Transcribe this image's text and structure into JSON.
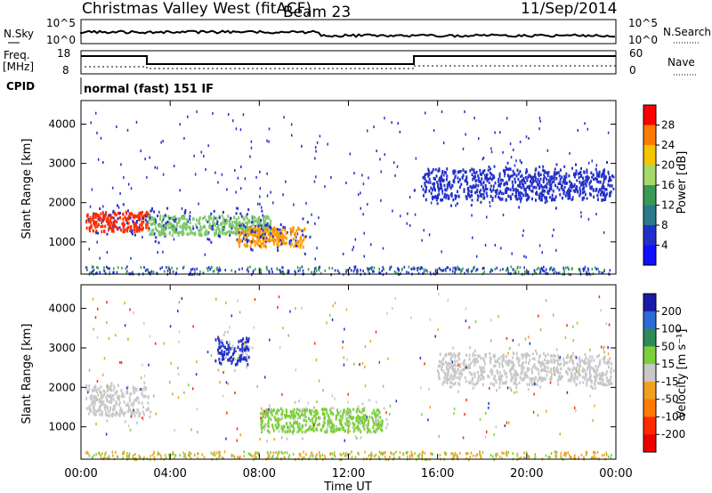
{
  "header": {
    "station": "Christmas Valley West (fitACF)",
    "beam": "Beam 23",
    "date": "11/Sep/2014"
  },
  "top_panels": {
    "nsky_label": "N.Sky",
    "nsky_ticks": [
      "10^5",
      "10^0"
    ],
    "nsearch_label": "N.Search",
    "nsearch_ticks": [
      "10^5",
      "10^0"
    ],
    "freq_label": "Freq.",
    "freq_unit": "[MHz]",
    "freq_ticks": [
      "18",
      "8"
    ],
    "nave_label": "Nave",
    "nave_ticks": [
      "60",
      "0"
    ],
    "cpid_label": "CPID",
    "cpid_value": "normal (fast) 151 IF"
  },
  "chart_data": [
    {
      "type": "heatmap",
      "name": "power",
      "ylabel": "Slant Range [km]",
      "xlabel": "",
      "xlim": [
        0,
        24
      ],
      "ylim": [
        180,
        4600
      ],
      "yticks": [
        1000,
        2000,
        3000,
        4000
      ],
      "colorbar": {
        "label": "Power [dB]",
        "ticks": [
          "28",
          "24",
          "20",
          "16",
          "12",
          "8",
          "4"
        ],
        "colors": [
          "#ff0000",
          "#ff7a00",
          "#f5c400",
          "#a6d96a",
          "#3a9a55",
          "#2a7a8a",
          "#2330c8",
          "#1010ff"
        ]
      },
      "features": [
        {
          "t0": 0.2,
          "t1": 3.0,
          "r0": 1300,
          "r1": 1800,
          "level": 26
        },
        {
          "t0": 3.0,
          "t1": 8.5,
          "r0": 1200,
          "r1": 1700,
          "level": 14
        },
        {
          "t0": 7.0,
          "t1": 10.0,
          "r0": 900,
          "r1": 1400,
          "level": 22
        },
        {
          "t0": 15.3,
          "t1": 23.8,
          "r0": 2100,
          "r1": 2900,
          "level": 6
        }
      ]
    },
    {
      "type": "heatmap",
      "name": "velocity",
      "ylabel": "Slant Range [km]",
      "xlabel": "Time UT",
      "xlim": [
        0,
        24
      ],
      "ylim": [
        180,
        4600
      ],
      "xticks": [
        "00:00",
        "04:00",
        "08:00",
        "12:00",
        "16:00",
        "20:00",
        "00:00"
      ],
      "yticks": [
        1000,
        2000,
        3000,
        4000
      ],
      "colorbar": {
        "label": "Velocity [m s⁻¹]",
        "ticks": [
          "200",
          "100",
          "50",
          "15",
          "-15",
          "-50",
          "-100",
          "-200"
        ],
        "colors": [
          "#1a1aa6",
          "#2c6cd2",
          "#2e8b57",
          "#7ccf3a",
          "#c8c8c8",
          "#f0a020",
          "#ff7a00",
          "#ff2a00",
          "#ee0000"
        ]
      },
      "features": [
        {
          "t0": 0.2,
          "t1": 3.0,
          "r0": 1300,
          "r1": 2100,
          "velocity": 0
        },
        {
          "t0": 6.0,
          "t1": 7.5,
          "r0": 2600,
          "r1": 3300,
          "velocity": 180
        },
        {
          "t0": 8.0,
          "t1": 13.5,
          "r0": 900,
          "r1": 1500,
          "velocity": 40
        },
        {
          "t0": 16.0,
          "t1": 23.8,
          "r0": 2100,
          "r1": 2900,
          "velocity": 0
        }
      ]
    }
  ]
}
